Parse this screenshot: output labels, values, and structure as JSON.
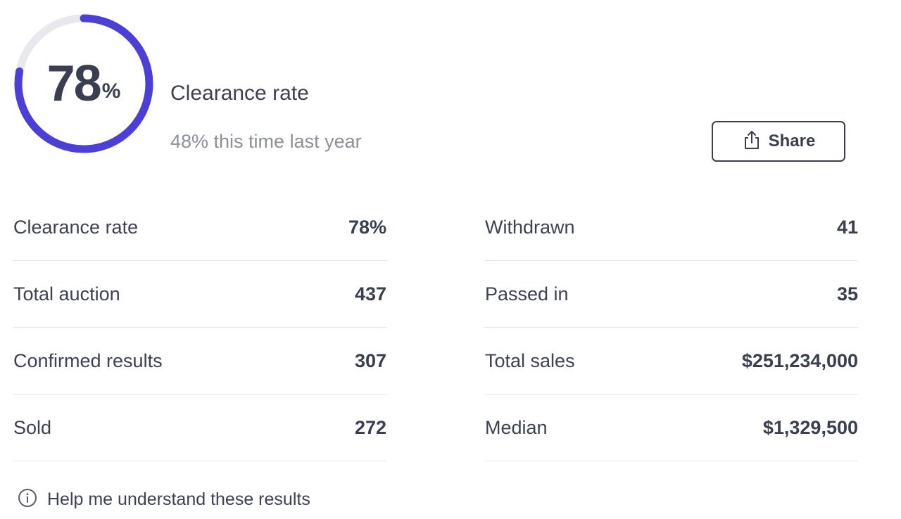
{
  "summary": {
    "gauge": {
      "value": "78",
      "unit": "%",
      "fraction": 0.78,
      "track_color": "#e8e8ee",
      "fill_color": "#4b3fd8"
    },
    "title": "Clearance rate",
    "comparison": "48% this time last year",
    "share_label": "Share",
    "share_icon": "share-icon"
  },
  "stats": {
    "left": [
      {
        "label": "Clearance rate",
        "value": "78%"
      },
      {
        "label": "Total auction",
        "value": "437"
      },
      {
        "label": "Confirmed results",
        "value": "307"
      },
      {
        "label": "Sold",
        "value": "272"
      }
    ],
    "right": [
      {
        "label": "Withdrawn",
        "value": "41"
      },
      {
        "label": "Passed in",
        "value": "35"
      },
      {
        "label": "Total sales",
        "value": "$251,234,000"
      },
      {
        "label": "Median",
        "value": "$1,329,500"
      }
    ]
  },
  "help": {
    "label": "Help me understand these results",
    "icon": "info-icon"
  }
}
